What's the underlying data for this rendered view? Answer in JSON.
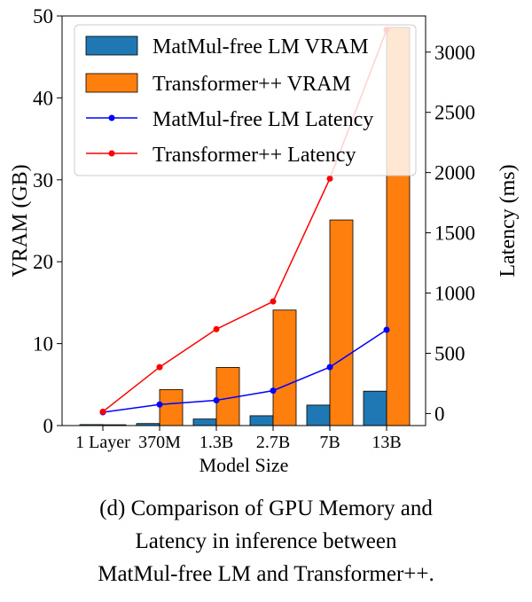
{
  "chart_data": {
    "type": "bar",
    "title": "",
    "xlabel": "Model Size",
    "ylabel": "VRAM (GB)",
    "ylabel_right": "Latency (ms)",
    "categories": [
      "1 Layer",
      "370M",
      "1.3B",
      "2.7B",
      "7B",
      "13B"
    ],
    "ylim": [
      0,
      50
    ],
    "ylim_right": [
      -100,
      3300
    ],
    "yticks": [
      0,
      10,
      20,
      30,
      40,
      50
    ],
    "yticks_right": [
      0,
      500,
      1000,
      1500,
      2000,
      2500,
      3000
    ],
    "grid": false,
    "legend_position": "top-left",
    "series": [
      {
        "name": "MatMul-free LM VRAM",
        "kind": "bar",
        "axis": "left",
        "color": "#1f77b4",
        "values": [
          0.12,
          0.25,
          0.8,
          1.2,
          2.5,
          4.2
        ]
      },
      {
        "name": "Transformer++ VRAM",
        "kind": "bar",
        "axis": "left",
        "color": "#ff7f0e",
        "values": [
          0.1,
          4.4,
          7.1,
          14.1,
          25.1,
          48.6
        ]
      },
      {
        "name": "MatMul-free LM Latency",
        "kind": "line",
        "axis": "right",
        "color": "#0000ff",
        "values": [
          10,
          75,
          110,
          190,
          385,
          695
        ]
      },
      {
        "name": "Transformer++ Latency",
        "kind": "line",
        "axis": "right",
        "color": "#ff0000",
        "values": [
          15,
          385,
          700,
          930,
          1950,
          3185
        ]
      }
    ]
  },
  "caption": {
    "line1": "(d) Comparison of GPU Memory and",
    "line2": "Latency in inference between",
    "line3": "MatMul-free LM and Transformer++."
  }
}
